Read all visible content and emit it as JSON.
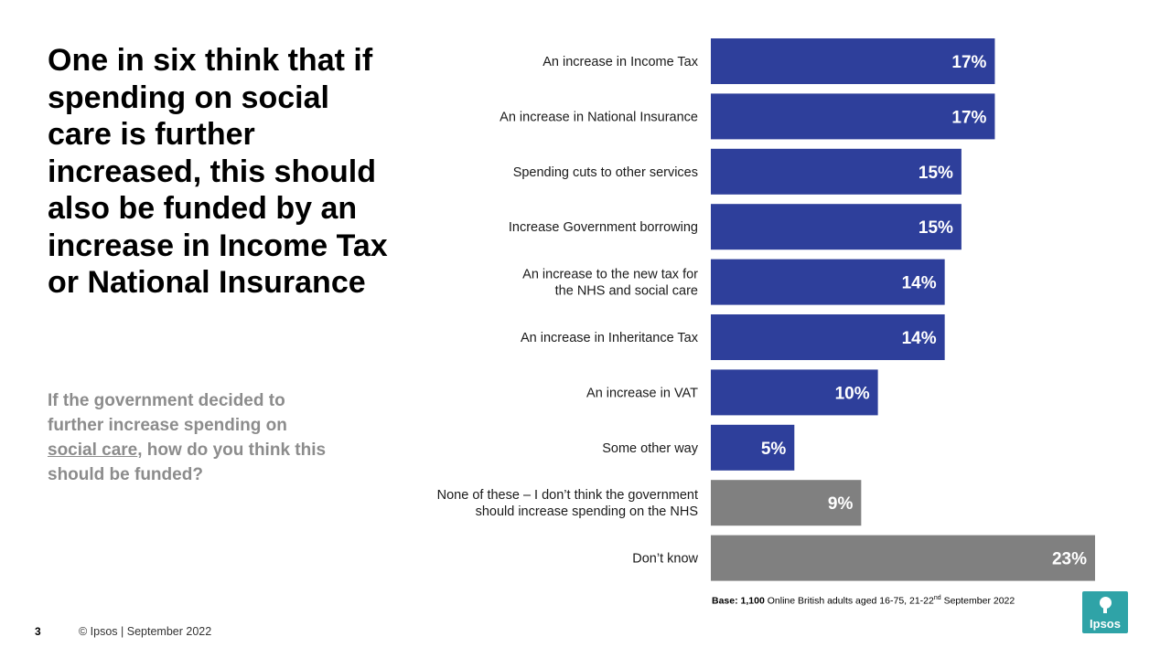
{
  "slide": {
    "title": "One in six think that if spending on social care is further increased, this should also be funded by an increase in Income Tax or National Insurance",
    "question_before": "If the government decided to further increase spending on ",
    "question_underlined": "social care",
    "question_after": ", how do you think this should be funded?",
    "base_label": "Base:",
    "base_count": "1,100",
    "base_text": " Online British adults aged 16-75, 21-22",
    "base_superscript": "nd",
    "base_suffix": " September 2022",
    "page_number": "3",
    "footer": "© Ipsos | September 2022",
    "logo_text": "Ipsos"
  },
  "chart_data": {
    "type": "bar",
    "orientation": "horizontal",
    "title": "",
    "xlabel": "",
    "ylabel": "",
    "xlim": [
      0,
      23
    ],
    "value_suffix": "%",
    "categories": [
      [
        "An increase in Income Tax"
      ],
      [
        "An increase in National Insurance"
      ],
      [
        "Spending cuts to other services"
      ],
      [
        "Increase Government borrowing"
      ],
      [
        "An increase to the new tax for",
        "the NHS and social care"
      ],
      [
        "An increase in Inheritance Tax"
      ],
      [
        "An increase in VAT"
      ],
      [
        "Some other way"
      ],
      [
        "None of these – I don’t think the government",
        "should increase spending on the NHS"
      ],
      [
        "Don’t know"
      ]
    ],
    "values": [
      17,
      17,
      15,
      15,
      14,
      14,
      10,
      5,
      9,
      23
    ],
    "value_labels": [
      "17%",
      "17%",
      "15%",
      "15%",
      "14%",
      "14%",
      "10%",
      "5%",
      "9%",
      "23%"
    ],
    "colors": [
      "#2e3f9b",
      "#2e3f9b",
      "#2e3f9b",
      "#2e3f9b",
      "#2e3f9b",
      "#2e3f9b",
      "#2e3f9b",
      "#2e3f9b",
      "#808080",
      "#808080"
    ]
  },
  "colors": {
    "funding_bar": "#2e3f9b",
    "other_bar": "#808080",
    "logo": "#2fa3a7"
  }
}
